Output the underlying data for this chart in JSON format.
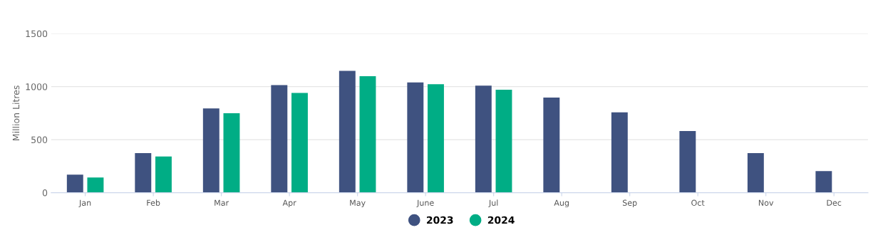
{
  "chart_data": {
    "type": "bar",
    "ylabel": "Million Litres",
    "categories": [
      "Jan",
      "Feb",
      "Mar",
      "Apr",
      "May",
      "June",
      "Jul",
      "Aug",
      "Sep",
      "Oct",
      "Nov",
      "Dec"
    ],
    "series": [
      {
        "name": "2023",
        "color": "#3f5280",
        "values": [
          170,
          373,
          794,
          1015,
          1148,
          1039,
          1009,
          897,
          757,
          581,
          373,
          203
        ]
      },
      {
        "name": "2024",
        "color": "#00ad85",
        "values": [
          144,
          341,
          749,
          941,
          1098,
          1023,
          971,
          null,
          null,
          null,
          null,
          null
        ]
      }
    ],
    "ylim": [
      0,
      1500
    ],
    "yticks": [
      0,
      500,
      1000,
      1500
    ],
    "grid": "y",
    "legend": "bottom"
  }
}
